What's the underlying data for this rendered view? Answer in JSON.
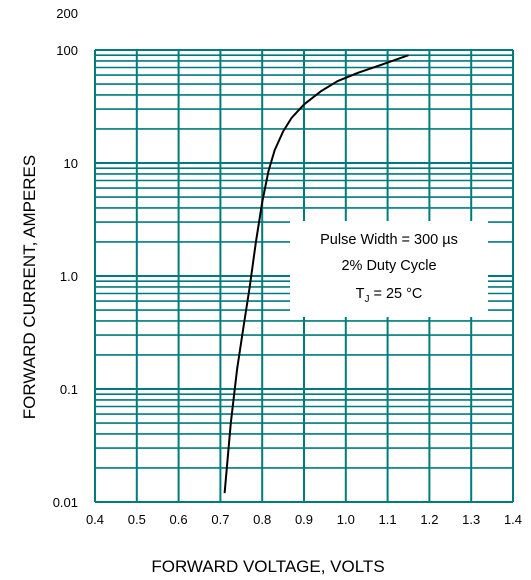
{
  "chart_data": {
    "type": "line",
    "xlabel": "FORWARD VOLTAGE, VOLTS",
    "ylabel": "FORWARD CURRENT,  AMPERES",
    "xlim": [
      0.4,
      1.4
    ],
    "ylim": [
      0.01,
      200
    ],
    "yscale": "log",
    "grid": true,
    "grid_color": "#007b7b",
    "line_color": "#000000",
    "x_ticks": [
      "0.4",
      "0.5",
      "0.6",
      "0.7",
      "0.8",
      "0.9",
      "1.0",
      "1.1",
      "1.2",
      "1.3",
      "1.4"
    ],
    "y_ticks": [
      "0.01",
      "0.1",
      "1.0",
      "10",
      "100",
      "200"
    ],
    "series": [
      {
        "x": [
          0.71,
          0.725,
          0.74,
          0.755,
          0.77,
          0.785,
          0.8,
          0.815,
          0.83,
          0.85,
          0.87,
          0.9,
          0.94,
          0.98,
          1.03,
          1.09,
          1.15
        ],
        "y": [
          0.012,
          0.05,
          0.15,
          0.35,
          0.8,
          2.0,
          4.5,
          8.5,
          13,
          19,
          25,
          33,
          43,
          53,
          63,
          75,
          90
        ]
      }
    ],
    "annotation": {
      "line1": "Pulse Width = 300 µs",
      "line2": "2% Duty Cycle",
      "line3_prefix": "T",
      "line3_sub": "J",
      "line3_suffix": " = 25 °C"
    }
  }
}
